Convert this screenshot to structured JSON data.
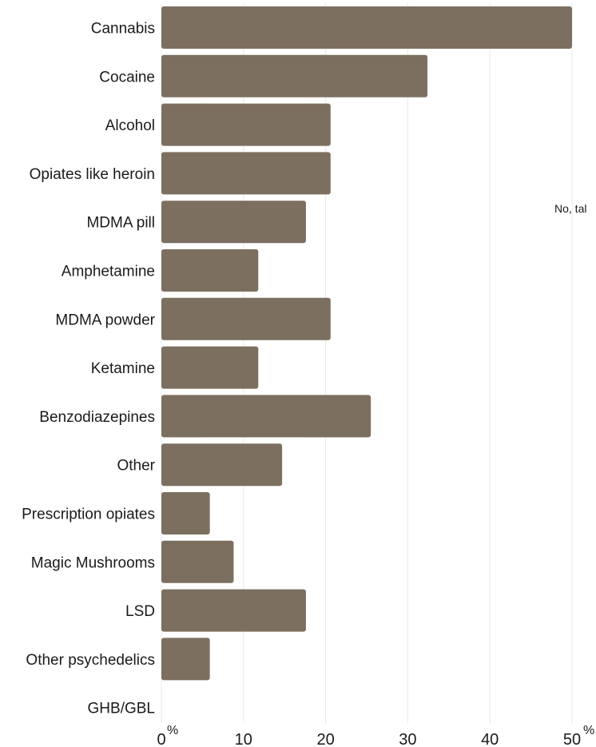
{
  "chart_data": {
    "type": "bar",
    "orientation": "horizontal",
    "categories": [
      "Cannabis",
      "Cocaine",
      "Alcohol",
      "Opiates like heroin",
      "MDMA pill",
      "Amphetamine",
      "MDMA powder",
      "Ketamine",
      "Benzodiazepines",
      "Other",
      "Prescription opiates",
      "Magic Mushrooms",
      "LSD",
      "Other psychedelics",
      "GHB/GBL"
    ],
    "values": [
      50,
      32.4,
      20.6,
      20.6,
      17.6,
      11.8,
      20.6,
      11.8,
      25.5,
      14.7,
      5.9,
      8.8,
      17.6,
      5.9,
      0
    ],
    "xlim": [
      0,
      50
    ],
    "xticks": [
      0,
      10,
      20,
      30,
      40,
      50
    ],
    "tick_labels": [
      "0",
      "10",
      "20",
      "30",
      "40",
      "50"
    ],
    "unit": "%",
    "grid": true,
    "bar_color": "#7d6f5f",
    "side_text": "No, tal"
  }
}
